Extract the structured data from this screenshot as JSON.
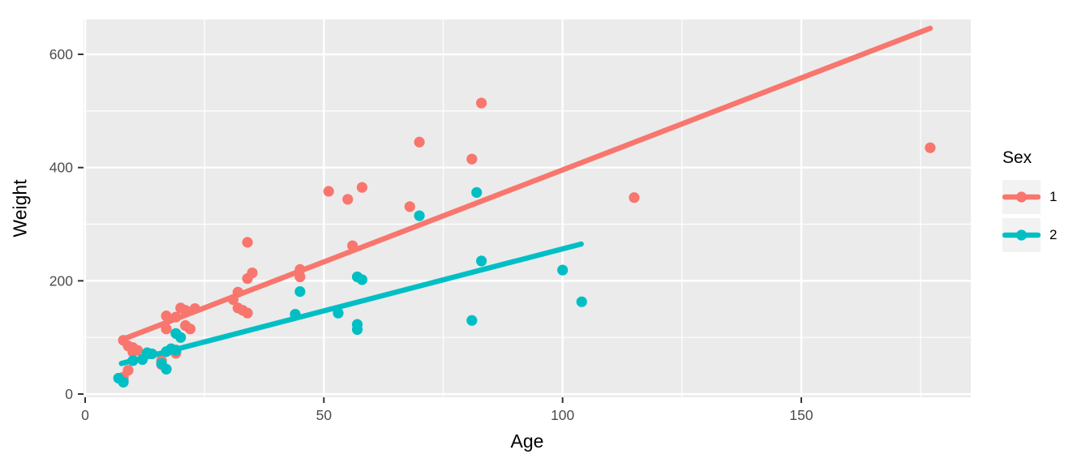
{
  "chart_data": {
    "type": "scatter",
    "title": "",
    "xlabel": "Age",
    "ylabel": "Weight",
    "xlim": [
      -0.34,
      185.5
    ],
    "ylim": [
      -5.7,
      661.6
    ],
    "x_ticks": [
      0,
      50,
      100,
      150
    ],
    "y_ticks": [
      0,
      200,
      400,
      600
    ],
    "x_minor_ticks": [
      25,
      75,
      125,
      175
    ],
    "y_minor_ticks": [
      100,
      300,
      500
    ],
    "grid": "major+minor, white on gray panel",
    "panel_bg": "#EBEBEB",
    "grid_color": "#FFFFFF",
    "tick_color": "#333333",
    "tick_label_color": "#4D4D4D",
    "legend": {
      "title": "Sex",
      "position": "right",
      "key_bg": "#F2F2F2",
      "items": [
        {
          "label": "1",
          "color": "#F8766D"
        },
        {
          "label": "2",
          "color": "#00BFC4"
        }
      ]
    },
    "series": [
      {
        "name": "1",
        "color": "#F8766D",
        "trend_line": {
          "x1": 8.3,
          "y1": 98,
          "x2": 177,
          "y2": 646
        },
        "points": [
          [
            8,
            25
          ],
          [
            8,
            30
          ],
          [
            9,
            42
          ],
          [
            8,
            95
          ],
          [
            9,
            85
          ],
          [
            10,
            82
          ],
          [
            10,
            74
          ],
          [
            11,
            77
          ],
          [
            16,
            59
          ],
          [
            16,
            52
          ],
          [
            17,
            115
          ],
          [
            17,
            138
          ],
          [
            19,
            136
          ],
          [
            19,
            78
          ],
          [
            19,
            72
          ],
          [
            20,
            152
          ],
          [
            21,
            148
          ],
          [
            23,
            151
          ],
          [
            21,
            121
          ],
          [
            22,
            115
          ],
          [
            31,
            167
          ],
          [
            32,
            180
          ],
          [
            32,
            152
          ],
          [
            33,
            148
          ],
          [
            34,
            143
          ],
          [
            34,
            268
          ],
          [
            35,
            214
          ],
          [
            34,
            204
          ],
          [
            45,
            220
          ],
          [
            45,
            207
          ],
          [
            51,
            358
          ],
          [
            55,
            344
          ],
          [
            56,
            262
          ],
          [
            58,
            365
          ],
          [
            68,
            331
          ],
          [
            70,
            445
          ],
          [
            81,
            415
          ],
          [
            83,
            514
          ],
          [
            115,
            347
          ],
          [
            177,
            435
          ]
        ]
      },
      {
        "name": "2",
        "color": "#00BFC4",
        "trend_line": {
          "x1": 7.6,
          "y1": 54,
          "x2": 103.9,
          "y2": 265
        },
        "points": [
          [
            7,
            28
          ],
          [
            8,
            21
          ],
          [
            10,
            59
          ],
          [
            12,
            61
          ],
          [
            13,
            73
          ],
          [
            14,
            71
          ],
          [
            16,
            54
          ],
          [
            17,
            44
          ],
          [
            17,
            75
          ],
          [
            18,
            80
          ],
          [
            19,
            77
          ],
          [
            19,
            107
          ],
          [
            20,
            100
          ],
          [
            44,
            141
          ],
          [
            45,
            181
          ],
          [
            53,
            143
          ],
          [
            57,
            207
          ],
          [
            58,
            202
          ],
          [
            57,
            123
          ],
          [
            57,
            114
          ],
          [
            70,
            315
          ],
          [
            81,
            130
          ],
          [
            82,
            356
          ],
          [
            83,
            235
          ],
          [
            100,
            219
          ],
          [
            104,
            163
          ]
        ]
      }
    ]
  }
}
